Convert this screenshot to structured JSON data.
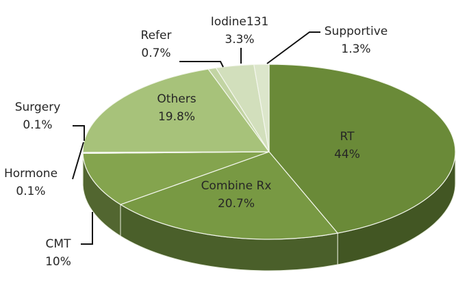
{
  "chart_data": {
    "type": "pie3d",
    "categories": [
      "RT",
      "Combine Rx",
      "CMT",
      "Hormone",
      "Surgery",
      "Others",
      "Refer",
      "Iodine131",
      "Supportive"
    ],
    "values": [
      44,
      20.7,
      10,
      0.1,
      0.1,
      19.8,
      0.7,
      3.3,
      1.3
    ],
    "value_labels": [
      "44%",
      "20.7%",
      "10%",
      "0.1%",
      "0.1%",
      "19.8%",
      "0.7%",
      "3.3%",
      "1.3%"
    ],
    "colors": [
      "#6a8a38",
      "#789943",
      "#84a44e",
      "#8aa956",
      "#93b160",
      "#a7c27a",
      "#c2d4a3",
      "#d2dfbc",
      "#dce6cb"
    ]
  }
}
